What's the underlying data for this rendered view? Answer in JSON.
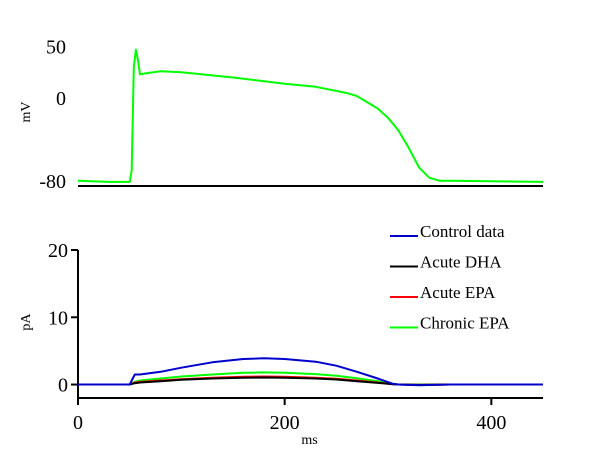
{
  "chart_data": [
    {
      "type": "line",
      "panel": "top",
      "xlabel": "",
      "ylabel": "mV",
      "xlim": [
        0,
        450
      ],
      "ylim": [
        -85,
        65
      ],
      "yticks": [
        50,
        0,
        -80
      ],
      "series": [
        {
          "color": "#00ff00",
          "x": [
            0,
            30,
            50,
            52,
            54,
            56,
            58,
            60,
            65,
            80,
            100,
            150,
            200,
            230,
            260,
            270,
            290,
            300,
            310,
            320,
            330,
            340,
            350,
            355,
            360,
            400,
            450
          ],
          "y": [
            -80,
            -81,
            -81,
            -70,
            30,
            47,
            37,
            23,
            24,
            26,
            25,
            20,
            14,
            11,
            5,
            2,
            -10,
            -19,
            -31,
            -48,
            -67,
            -77,
            -80,
            -80,
            -80,
            -80.5,
            -81
          ]
        }
      ]
    },
    {
      "type": "line",
      "panel": "bottom",
      "xlabel": "ms",
      "ylabel": "pA",
      "xlim": [
        0,
        450
      ],
      "ylim": [
        -2,
        20
      ],
      "xticks": [
        0,
        200,
        400
      ],
      "yticks": [
        20,
        10,
        0
      ],
      "legend": "top-right",
      "series": [
        {
          "name": "Control data",
          "color": "#0000cc",
          "x": [
            0,
            50,
            52,
            55,
            60,
            80,
            100,
            130,
            160,
            180,
            200,
            230,
            250,
            270,
            290,
            305,
            310,
            330,
            360,
            400,
            450
          ],
          "y": [
            0,
            0,
            0.6,
            1.5,
            1.5,
            1.9,
            2.5,
            3.3,
            3.8,
            3.9,
            3.8,
            3.4,
            2.8,
            1.9,
            0.9,
            0.1,
            0,
            -0.1,
            0,
            0,
            0
          ]
        },
        {
          "name": "Acute DHA",
          "color": "#000000",
          "x": [
            0,
            50,
            55,
            60,
            80,
            100,
            130,
            160,
            180,
            200,
            230,
            250,
            270,
            290,
            305,
            310,
            330,
            360,
            400,
            450
          ],
          "y": [
            0,
            0,
            0.2,
            0.3,
            0.5,
            0.7,
            0.9,
            1.0,
            1.05,
            1.0,
            0.9,
            0.75,
            0.5,
            0.25,
            0.05,
            0,
            -0.05,
            0,
            0,
            0
          ]
        },
        {
          "name": "Acute EPA",
          "color": "#ff0000",
          "x": [
            0,
            50,
            55,
            60,
            80,
            100,
            130,
            160,
            180,
            200,
            230,
            250,
            270,
            290,
            305,
            310,
            330,
            360,
            400,
            450
          ],
          "y": [
            0,
            0,
            0.3,
            0.4,
            0.6,
            0.8,
            1.0,
            1.15,
            1.2,
            1.15,
            1.0,
            0.85,
            0.6,
            0.3,
            0.05,
            0,
            -0.05,
            0,
            0,
            0
          ]
        },
        {
          "name": "Chronic EPA",
          "color": "#00ff00",
          "x": [
            0,
            50,
            55,
            60,
            80,
            100,
            130,
            160,
            180,
            200,
            230,
            250,
            270,
            290,
            305,
            310,
            330,
            360,
            400,
            450
          ],
          "y": [
            0,
            0,
            0.4,
            0.6,
            0.9,
            1.2,
            1.5,
            1.75,
            1.8,
            1.75,
            1.55,
            1.3,
            0.95,
            0.5,
            0.1,
            0,
            0,
            0,
            0,
            0
          ]
        }
      ]
    }
  ]
}
